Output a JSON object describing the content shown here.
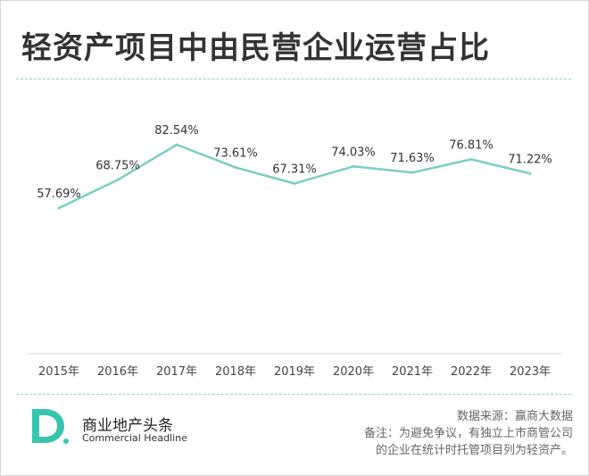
{
  "header": {
    "title": "轻资产项目中由民营企业运营占比"
  },
  "chart_data": {
    "type": "line",
    "categories": [
      "2015年",
      "2016年",
      "2017年",
      "2018年",
      "2019年",
      "2020年",
      "2021年",
      "2022年",
      "2023年"
    ],
    "values": [
      57.69,
      68.75,
      82.54,
      73.61,
      67.31,
      74.03,
      71.63,
      76.81,
      71.22
    ],
    "data_labels": [
      "57.69%",
      "68.75%",
      "82.54%",
      "73.61%",
      "67.31%",
      "74.03%",
      "71.63%",
      "76.81%",
      "71.22%"
    ],
    "ylim": [
      0,
      100
    ],
    "grid": false,
    "line_color": "#7ccfc0",
    "axis_color": "#d9d9d9"
  },
  "footer": {
    "brand_letter": "D",
    "brand_name_cn": "商业地产头条",
    "brand_name_en": "Commercial Headline",
    "source": "数据来源：赢商大数据",
    "note_line1": "备注：为避免争议，有独立上市商管公司",
    "note_line2": "的企业在统计时托管项目列为轻资产。"
  },
  "colors": {
    "accent": "#7ccfc0",
    "logo_teal": "#37c6ad"
  }
}
